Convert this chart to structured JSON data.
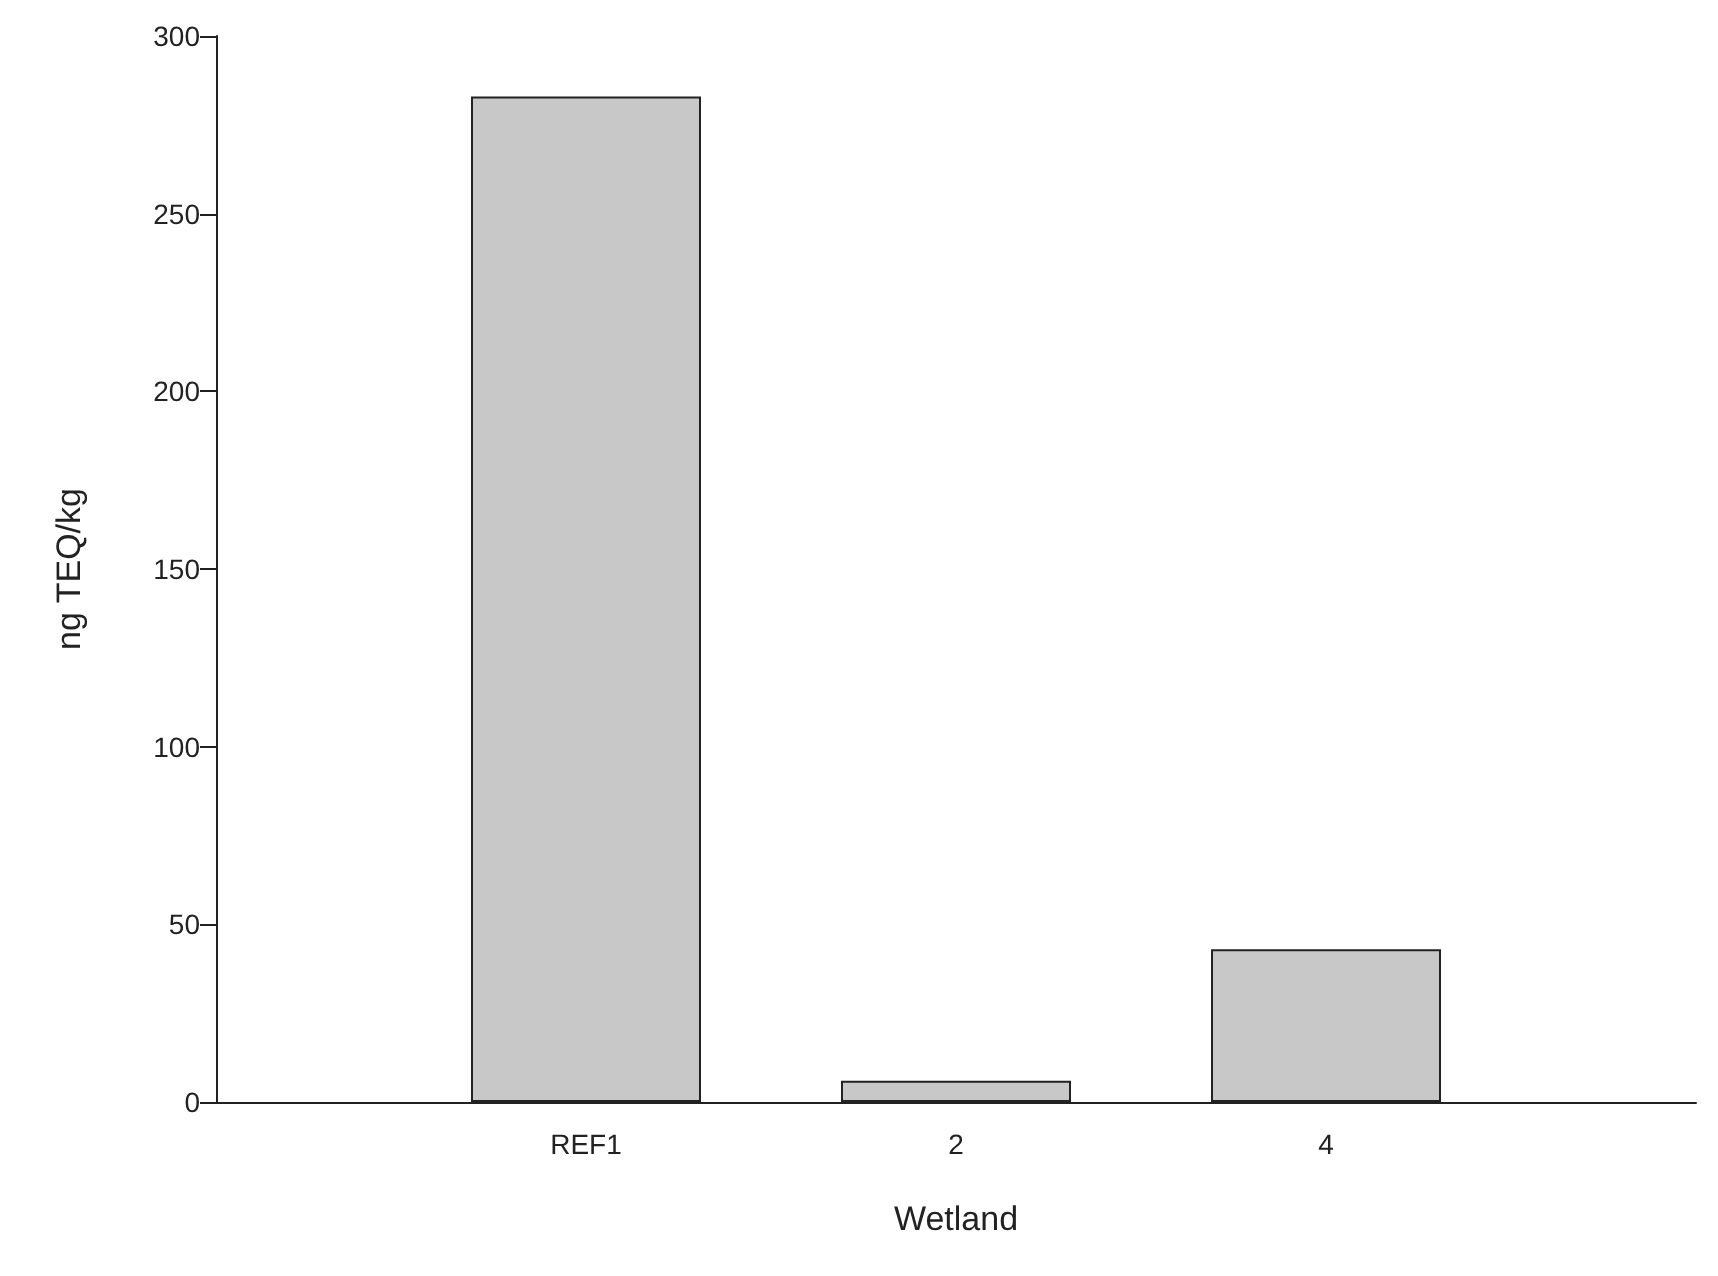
{
  "chart_data": {
    "type": "bar",
    "xlabel": "Wetland",
    "ylabel": "ng TEQ/kg",
    "categories": [
      "REF1",
      "2",
      "4"
    ],
    "values": [
      283,
      6,
      43
    ],
    "color": "#c8c8c8",
    "ylim": [
      0,
      300
    ],
    "yticks": [
      0,
      50,
      100,
      150,
      200,
      250,
      300
    ],
    "grid": false
  }
}
